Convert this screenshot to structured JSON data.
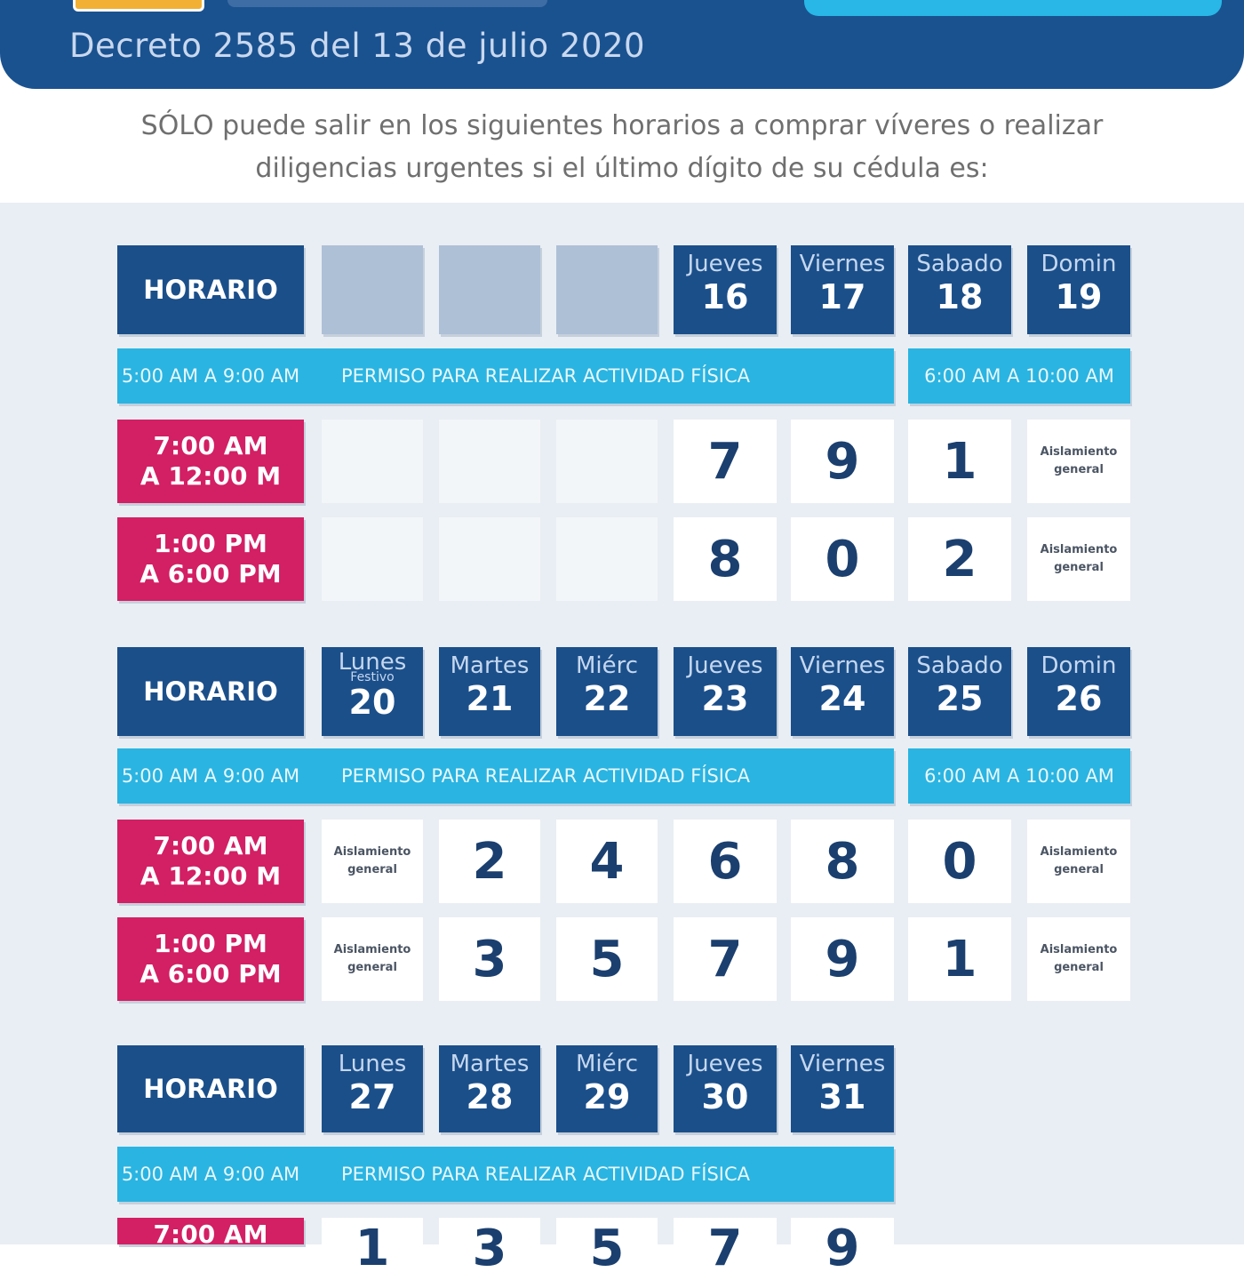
{
  "header": {
    "decree": "Decreto 2585 del 13 de julio 2020"
  },
  "intro": {
    "line1": "SÓLO puede salir en los siguientes horarios a comprar víveres o realizar",
    "line2": "diligencias urgentes si el último dígito de su cédula es:"
  },
  "labels": {
    "horario": "HORARIO",
    "band_time_week": "5:00 AM A 9:00 AM",
    "band_text": "PERMISO PARA REALIZAR ACTIVIDAD FÍSICA",
    "band_time_weekend": "6:00 AM A 10:00 AM",
    "slot1_a": "7:00 AM",
    "slot1_b": "A 12:00 M",
    "slot2_a": "1:00 PM",
    "slot2_b": "A 6:00 PM",
    "aislamiento_a": "Aislamiento",
    "aislamiento_b": "general"
  },
  "week1": {
    "days": [
      {
        "name": "Jueves",
        "num": "16"
      },
      {
        "name": "Viernes",
        "num": "17"
      },
      {
        "name": "Sabado",
        "num": "18"
      },
      {
        "name": "Domin",
        "num": "19"
      }
    ],
    "morning": [
      "7",
      "9",
      "1"
    ],
    "afternoon": [
      "8",
      "0",
      "2"
    ]
  },
  "week2": {
    "days": [
      {
        "name": "Lunes",
        "note": "Festivo",
        "num": "20"
      },
      {
        "name": "Martes",
        "num": "21"
      },
      {
        "name": "Miérc",
        "num": "22"
      },
      {
        "name": "Jueves",
        "num": "23"
      },
      {
        "name": "Viernes",
        "num": "24"
      },
      {
        "name": "Sabado",
        "num": "25"
      },
      {
        "name": "Domin",
        "num": "26"
      }
    ],
    "morning": [
      "2",
      "4",
      "6",
      "8",
      "0"
    ],
    "afternoon": [
      "3",
      "5",
      "7",
      "9",
      "1"
    ]
  },
  "week3": {
    "days": [
      {
        "name": "Lunes",
        "num": "27"
      },
      {
        "name": "Martes",
        "num": "28"
      },
      {
        "name": "Miérc",
        "num": "29"
      },
      {
        "name": "Jueves",
        "num": "30"
      },
      {
        "name": "Viernes",
        "num": "31"
      }
    ],
    "morning": [
      "1",
      "3",
      "5",
      "7",
      "9"
    ]
  },
  "colors": {
    "navy": "#1b4f8a",
    "cyan": "#2ab4e1",
    "magenta": "#d31f64",
    "panel": "#e9eef4"
  }
}
